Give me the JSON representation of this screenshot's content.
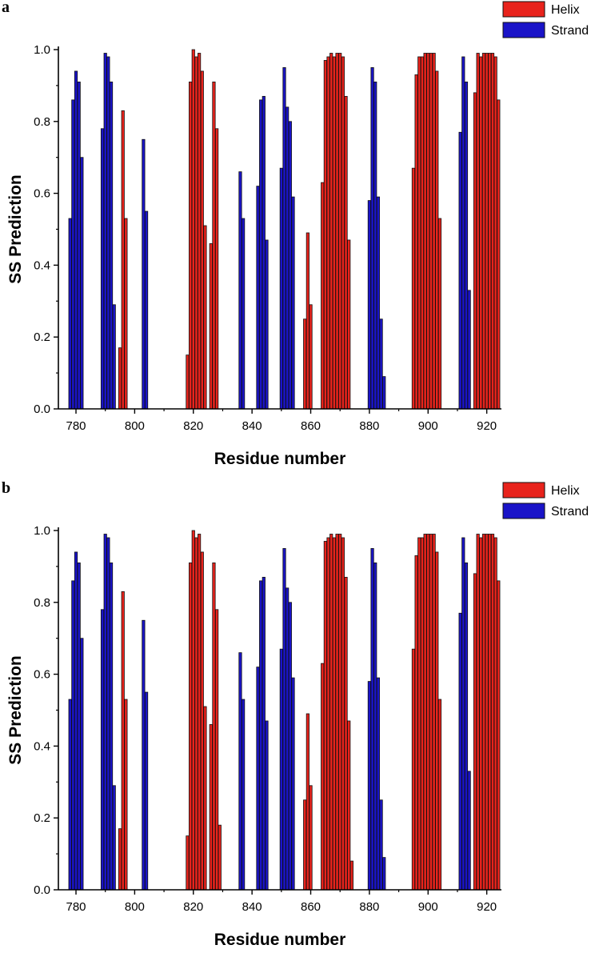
{
  "colors": {
    "helix": "#e8231c",
    "strand": "#1a14c8",
    "bar_edge": "#111111",
    "axis": "#000000"
  },
  "chart_data": [
    {
      "panel_label": "a",
      "type": "bar",
      "title": "",
      "xlabel": "Residue number",
      "ylabel": "SS Prediction",
      "xlim": [
        774,
        925
      ],
      "ylim": [
        0,
        1.0
      ],
      "xticks": [
        780,
        800,
        820,
        840,
        860,
        880,
        900,
        920
      ],
      "yticks": [
        0.0,
        0.2,
        0.4,
        0.6,
        0.8,
        1.0
      ],
      "legend_position": "top-right",
      "series": [
        {
          "name": "Helix",
          "color": "#e8231c",
          "points": [
            [
              795,
              0.17
            ],
            [
              796,
              0.83
            ],
            [
              797,
              0.53
            ],
            [
              818,
              0.15
            ],
            [
              819,
              0.91
            ],
            [
              820,
              1.0
            ],
            [
              821,
              0.98
            ],
            [
              822,
              0.99
            ],
            [
              823,
              0.94
            ],
            [
              824,
              0.51
            ],
            [
              826,
              0.46
            ],
            [
              827,
              0.91
            ],
            [
              828,
              0.78
            ],
            [
              858,
              0.25
            ],
            [
              859,
              0.49
            ],
            [
              860,
              0.29
            ],
            [
              864,
              0.63
            ],
            [
              865,
              0.97
            ],
            [
              866,
              0.98
            ],
            [
              867,
              0.99
            ],
            [
              868,
              0.98
            ],
            [
              869,
              0.99
            ],
            [
              870,
              0.99
            ],
            [
              871,
              0.98
            ],
            [
              872,
              0.87
            ],
            [
              873,
              0.47
            ],
            [
              895,
              0.67
            ],
            [
              896,
              0.93
            ],
            [
              897,
              0.98
            ],
            [
              898,
              0.98
            ],
            [
              899,
              0.99
            ],
            [
              900,
              0.99
            ],
            [
              901,
              0.99
            ],
            [
              902,
              0.99
            ],
            [
              903,
              0.94
            ],
            [
              904,
              0.53
            ],
            [
              916,
              0.88
            ],
            [
              917,
              0.99
            ],
            [
              918,
              0.98
            ],
            [
              919,
              0.99
            ],
            [
              920,
              0.99
            ],
            [
              921,
              0.99
            ],
            [
              922,
              0.99
            ],
            [
              923,
              0.98
            ],
            [
              924,
              0.86
            ]
          ]
        },
        {
          "name": "Strand",
          "color": "#1a14c8",
          "points": [
            [
              778,
              0.53
            ],
            [
              779,
              0.86
            ],
            [
              780,
              0.94
            ],
            [
              781,
              0.91
            ],
            [
              782,
              0.7
            ],
            [
              789,
              0.78
            ],
            [
              790,
              0.99
            ],
            [
              791,
              0.98
            ],
            [
              792,
              0.91
            ],
            [
              793,
              0.29
            ],
            [
              803,
              0.75
            ],
            [
              804,
              0.55
            ],
            [
              836,
              0.66
            ],
            [
              837,
              0.53
            ],
            [
              842,
              0.62
            ],
            [
              843,
              0.86
            ],
            [
              844,
              0.87
            ],
            [
              845,
              0.47
            ],
            [
              850,
              0.67
            ],
            [
              851,
              0.95
            ],
            [
              852,
              0.84
            ],
            [
              853,
              0.8
            ],
            [
              854,
              0.59
            ],
            [
              880,
              0.58
            ],
            [
              881,
              0.95
            ],
            [
              882,
              0.91
            ],
            [
              883,
              0.59
            ],
            [
              884,
              0.25
            ],
            [
              885,
              0.09
            ],
            [
              911,
              0.77
            ],
            [
              912,
              0.98
            ],
            [
              913,
              0.91
            ],
            [
              914,
              0.33
            ]
          ]
        }
      ]
    },
    {
      "panel_label": "b",
      "type": "bar",
      "title": "",
      "xlabel": "Residue number",
      "ylabel": "SS Prediction",
      "xlim": [
        774,
        925
      ],
      "ylim": [
        0,
        1.0
      ],
      "xticks": [
        780,
        800,
        820,
        840,
        860,
        880,
        900,
        920
      ],
      "yticks": [
        0.0,
        0.2,
        0.4,
        0.6,
        0.8,
        1.0
      ],
      "legend_position": "top-right",
      "series": [
        {
          "name": "Helix",
          "color": "#e8231c",
          "points": [
            [
              795,
              0.17
            ],
            [
              796,
              0.83
            ],
            [
              797,
              0.53
            ],
            [
              818,
              0.15
            ],
            [
              819,
              0.91
            ],
            [
              820,
              1.0
            ],
            [
              821,
              0.98
            ],
            [
              822,
              0.99
            ],
            [
              823,
              0.94
            ],
            [
              824,
              0.51
            ],
            [
              826,
              0.46
            ],
            [
              827,
              0.91
            ],
            [
              828,
              0.78
            ],
            [
              829,
              0.18
            ],
            [
              858,
              0.25
            ],
            [
              859,
              0.49
            ],
            [
              860,
              0.29
            ],
            [
              864,
              0.63
            ],
            [
              865,
              0.97
            ],
            [
              866,
              0.98
            ],
            [
              867,
              0.99
            ],
            [
              868,
              0.98
            ],
            [
              869,
              0.99
            ],
            [
              870,
              0.99
            ],
            [
              871,
              0.98
            ],
            [
              872,
              0.87
            ],
            [
              873,
              0.47
            ],
            [
              874,
              0.08
            ],
            [
              895,
              0.67
            ],
            [
              896,
              0.93
            ],
            [
              897,
              0.98
            ],
            [
              898,
              0.98
            ],
            [
              899,
              0.99
            ],
            [
              900,
              0.99
            ],
            [
              901,
              0.99
            ],
            [
              902,
              0.99
            ],
            [
              903,
              0.94
            ],
            [
              904,
              0.53
            ],
            [
              916,
              0.88
            ],
            [
              917,
              0.99
            ],
            [
              918,
              0.98
            ],
            [
              919,
              0.99
            ],
            [
              920,
              0.99
            ],
            [
              921,
              0.99
            ],
            [
              922,
              0.99
            ],
            [
              923,
              0.98
            ],
            [
              924,
              0.86
            ]
          ]
        },
        {
          "name": "Strand",
          "color": "#1a14c8",
          "points": [
            [
              778,
              0.53
            ],
            [
              779,
              0.86
            ],
            [
              780,
              0.94
            ],
            [
              781,
              0.91
            ],
            [
              782,
              0.7
            ],
            [
              789,
              0.78
            ],
            [
              790,
              0.99
            ],
            [
              791,
              0.98
            ],
            [
              792,
              0.91
            ],
            [
              793,
              0.29
            ],
            [
              803,
              0.75
            ],
            [
              804,
              0.55
            ],
            [
              836,
              0.66
            ],
            [
              837,
              0.53
            ],
            [
              842,
              0.62
            ],
            [
              843,
              0.86
            ],
            [
              844,
              0.87
            ],
            [
              845,
              0.47
            ],
            [
              850,
              0.67
            ],
            [
              851,
              0.95
            ],
            [
              852,
              0.84
            ],
            [
              853,
              0.8
            ],
            [
              854,
              0.59
            ],
            [
              880,
              0.58
            ],
            [
              881,
              0.95
            ],
            [
              882,
              0.91
            ],
            [
              883,
              0.59
            ],
            [
              884,
              0.25
            ],
            [
              885,
              0.09
            ],
            [
              911,
              0.77
            ],
            [
              912,
              0.98
            ],
            [
              913,
              0.91
            ],
            [
              914,
              0.33
            ]
          ]
        }
      ]
    }
  ]
}
